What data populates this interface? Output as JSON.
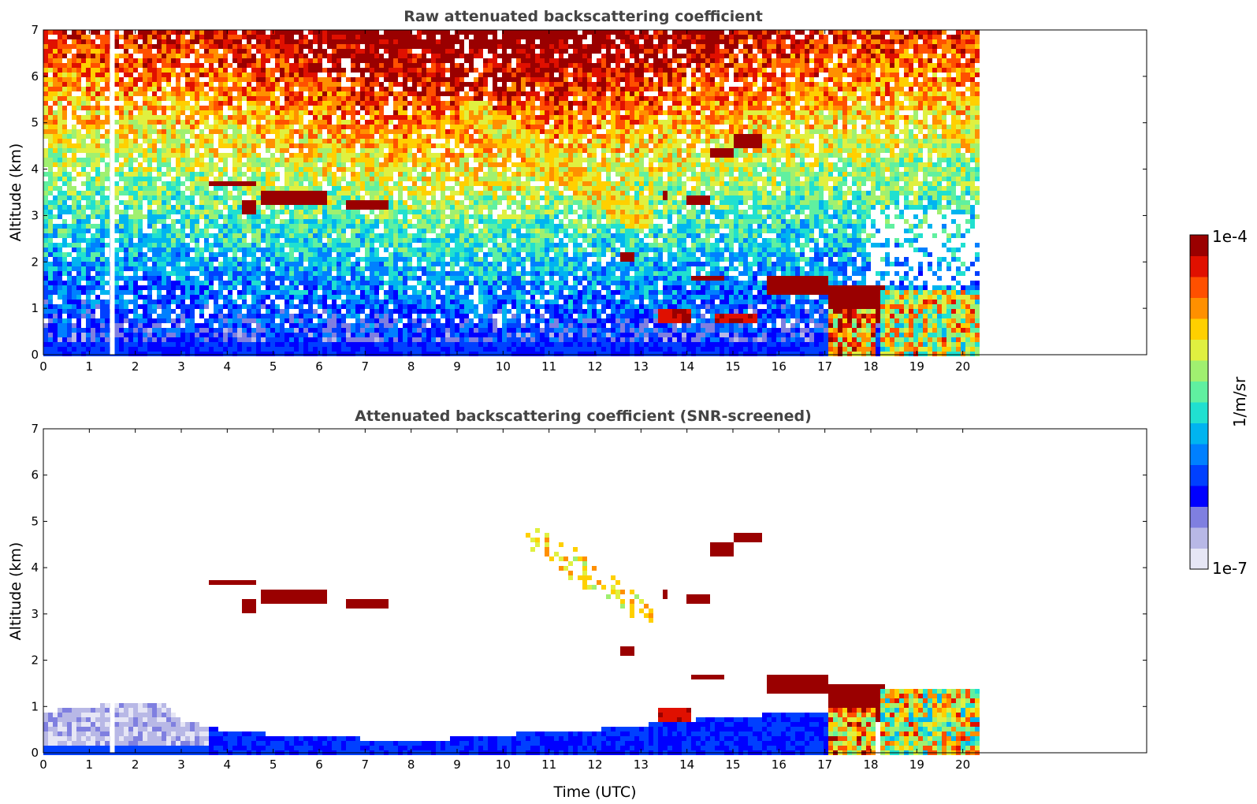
{
  "chart_data": [
    {
      "type": "heatmap",
      "title": "Raw attenuated backscattering coefficient",
      "xlabel": "",
      "ylabel": "Altitude (km)",
      "xlim": [
        0,
        24
      ],
      "ylim": [
        0,
        7
      ],
      "x_ticks": [
        "0",
        "1",
        "2",
        "3",
        "4",
        "5",
        "6",
        "7",
        "8",
        "9",
        "10",
        "11",
        "12",
        "13",
        "14",
        "15",
        "16",
        "17",
        "18",
        "19",
        "20"
      ],
      "y_ticks": [
        "0",
        "1",
        "2",
        "3",
        "4",
        "5",
        "6",
        "7"
      ],
      "data_end_time": 20.3,
      "gap_time": 1.5,
      "features": [
        {
          "kind": "cloud",
          "t0": 3.5,
          "t1": 4.6,
          "z0": 3.65,
          "z1": 3.78,
          "level": 1.0
        },
        {
          "kind": "cloud",
          "t0": 4.3,
          "t1": 4.6,
          "z0": 3.1,
          "z1": 3.35,
          "level": 1.0
        },
        {
          "kind": "cloud",
          "t0": 4.7,
          "t1": 6.1,
          "z0": 3.3,
          "z1": 3.55,
          "level": 1.0
        },
        {
          "kind": "cloud",
          "t0": 6.5,
          "t1": 7.5,
          "z0": 3.2,
          "z1": 3.35,
          "level": 1.0
        },
        {
          "kind": "cloud",
          "t0": 12.5,
          "t1": 12.8,
          "z0": 2.1,
          "z1": 2.3,
          "level": 1.0
        },
        {
          "kind": "cloud",
          "t0": 13.4,
          "t1": 13.5,
          "z0": 3.4,
          "z1": 3.6,
          "level": 1.0
        },
        {
          "kind": "cloud",
          "t0": 13.9,
          "t1": 14.4,
          "z0": 3.3,
          "z1": 3.45,
          "level": 1.0
        },
        {
          "kind": "cloud",
          "t0": 14.4,
          "t1": 15.0,
          "z0": 4.3,
          "z1": 4.55,
          "level": 1.0
        },
        {
          "kind": "cloud",
          "t0": 15.0,
          "t1": 15.6,
          "z0": 4.55,
          "z1": 4.8,
          "level": 1.0
        },
        {
          "kind": "cloud",
          "t0": 14.0,
          "t1": 14.8,
          "z0": 1.6,
          "z1": 1.75,
          "level": 1.0
        },
        {
          "kind": "cloud",
          "t0": 15.7,
          "t1": 17.0,
          "z0": 1.35,
          "z1": 1.75,
          "level": 1.0
        },
        {
          "kind": "cloud",
          "t0": 17.0,
          "t1": 18.3,
          "z0": 0.75,
          "z1": 1.5,
          "level": 1.0
        },
        {
          "kind": "cloud",
          "t0": 18.6,
          "t1": 20.3,
          "z0": 0.1,
          "z1": 0.25,
          "level": 1.0
        },
        {
          "kind": "cloud",
          "t0": 13.3,
          "t1": 14.0,
          "z0": 0.7,
          "z1": 1.0,
          "level": 0.95
        },
        {
          "kind": "cloud",
          "t0": 14.6,
          "t1": 15.5,
          "z0": 0.75,
          "z1": 0.95,
          "level": 0.95
        },
        {
          "kind": "precip",
          "t0": 17.0,
          "t1": 18.1,
          "z0": 0.0,
          "z1": 1.0,
          "level": 0.75
        },
        {
          "kind": "precip",
          "t0": 18.2,
          "t1": 20.3,
          "z0": 0.0,
          "z1": 1.4,
          "level": 0.65
        },
        {
          "kind": "plume",
          "t0": 9.0,
          "t1": 13.2,
          "z0": 2.8,
          "z1": 5.5,
          "level": 0.8
        }
      ]
    },
    {
      "type": "heatmap",
      "title": "Attenuated backscattering coefficient (SNR-screened)",
      "xlabel": "Time (UTC)",
      "ylabel": "Altitude (km)",
      "xlim": [
        0,
        24
      ],
      "ylim": [
        0,
        7
      ],
      "x_ticks": [
        "0",
        "1",
        "2",
        "3",
        "4",
        "5",
        "6",
        "7",
        "8",
        "9",
        "10",
        "11",
        "12",
        "13",
        "14",
        "15",
        "16",
        "17",
        "18",
        "19",
        "20"
      ],
      "y_ticks": [
        "0",
        "1",
        "2",
        "3",
        "4",
        "5",
        "6",
        "7"
      ],
      "data_end_time": 20.3,
      "gap_time": 1.5,
      "boundary_layer_top": [
        {
          "t": 0.0,
          "z": 0.95
        },
        {
          "t": 1.5,
          "z": 1.1
        },
        {
          "t": 2.5,
          "z": 1.15
        },
        {
          "t": 3.0,
          "z": 0.75
        },
        {
          "t": 4.0,
          "z": 0.5
        },
        {
          "t": 6.0,
          "z": 0.4
        },
        {
          "t": 8.0,
          "z": 0.3
        },
        {
          "t": 10.0,
          "z": 0.45
        },
        {
          "t": 12.0,
          "z": 0.55
        },
        {
          "t": 13.5,
          "z": 0.7
        },
        {
          "t": 15.0,
          "z": 0.85
        },
        {
          "t": 16.5,
          "z": 0.9
        },
        {
          "t": 17.0,
          "z": 0.9
        }
      ],
      "features": [
        {
          "kind": "cloud",
          "t0": 3.5,
          "t1": 4.6,
          "z0": 3.65,
          "z1": 3.78,
          "level": 1.0
        },
        {
          "kind": "cloud",
          "t0": 4.3,
          "t1": 4.6,
          "z0": 3.1,
          "z1": 3.35,
          "level": 1.0
        },
        {
          "kind": "cloud",
          "t0": 4.7,
          "t1": 6.1,
          "z0": 3.3,
          "z1": 3.55,
          "level": 1.0
        },
        {
          "kind": "cloud",
          "t0": 6.5,
          "t1": 7.5,
          "z0": 3.2,
          "z1": 3.35,
          "level": 1.0
        },
        {
          "kind": "cloud",
          "t0": 12.5,
          "t1": 12.8,
          "z0": 2.1,
          "z1": 2.3,
          "level": 1.0
        },
        {
          "kind": "cloud",
          "t0": 13.4,
          "t1": 13.5,
          "z0": 3.4,
          "z1": 3.6,
          "level": 1.0
        },
        {
          "kind": "cloud",
          "t0": 13.9,
          "t1": 14.4,
          "z0": 3.3,
          "z1": 3.45,
          "level": 1.0
        },
        {
          "kind": "cloud",
          "t0": 14.4,
          "t1": 15.0,
          "z0": 4.3,
          "z1": 4.55,
          "level": 1.0
        },
        {
          "kind": "cloud",
          "t0": 15.0,
          "t1": 15.6,
          "z0": 4.55,
          "z1": 4.8,
          "level": 1.0
        },
        {
          "kind": "cloud",
          "t0": 14.0,
          "t1": 14.8,
          "z0": 1.6,
          "z1": 1.75,
          "level": 1.0
        },
        {
          "kind": "cloud",
          "t0": 15.7,
          "t1": 17.0,
          "z0": 1.35,
          "z1": 1.75,
          "level": 1.0
        },
        {
          "kind": "cloud",
          "t0": 17.0,
          "t1": 18.3,
          "z0": 0.75,
          "z1": 1.5,
          "level": 1.0
        },
        {
          "kind": "cloud",
          "t0": 18.6,
          "t1": 20.3,
          "z0": 0.1,
          "z1": 0.25,
          "level": 1.0
        },
        {
          "kind": "cloud",
          "t0": 13.3,
          "t1": 14.0,
          "z0": 0.7,
          "z1": 1.0,
          "level": 0.95
        },
        {
          "kind": "precip",
          "t0": 17.0,
          "t1": 18.1,
          "z0": 0.0,
          "z1": 1.0,
          "level": 0.75
        },
        {
          "kind": "precip",
          "t0": 18.2,
          "t1": 20.3,
          "z0": 0.0,
          "z1": 1.4,
          "level": 0.65
        },
        {
          "kind": "plume",
          "t0": 10.4,
          "t1": 13.2,
          "z0": 2.9,
          "z1": 4.9,
          "level": 0.8
        }
      ]
    }
  ],
  "colorbar": {
    "max_label": "1e-4",
    "min_label": "1e-7",
    "unit_label": "1/m/sr",
    "colormap": [
      "#e6e6f5",
      "#b8b8e6",
      "#7f7fe0",
      "#0000ff",
      "#0040ff",
      "#0080ff",
      "#00b4f0",
      "#20e0d0",
      "#60f0a0",
      "#a0f070",
      "#e0f040",
      "#ffd000",
      "#ff9000",
      "#ff5000",
      "#e01000",
      "#9a0000"
    ]
  }
}
